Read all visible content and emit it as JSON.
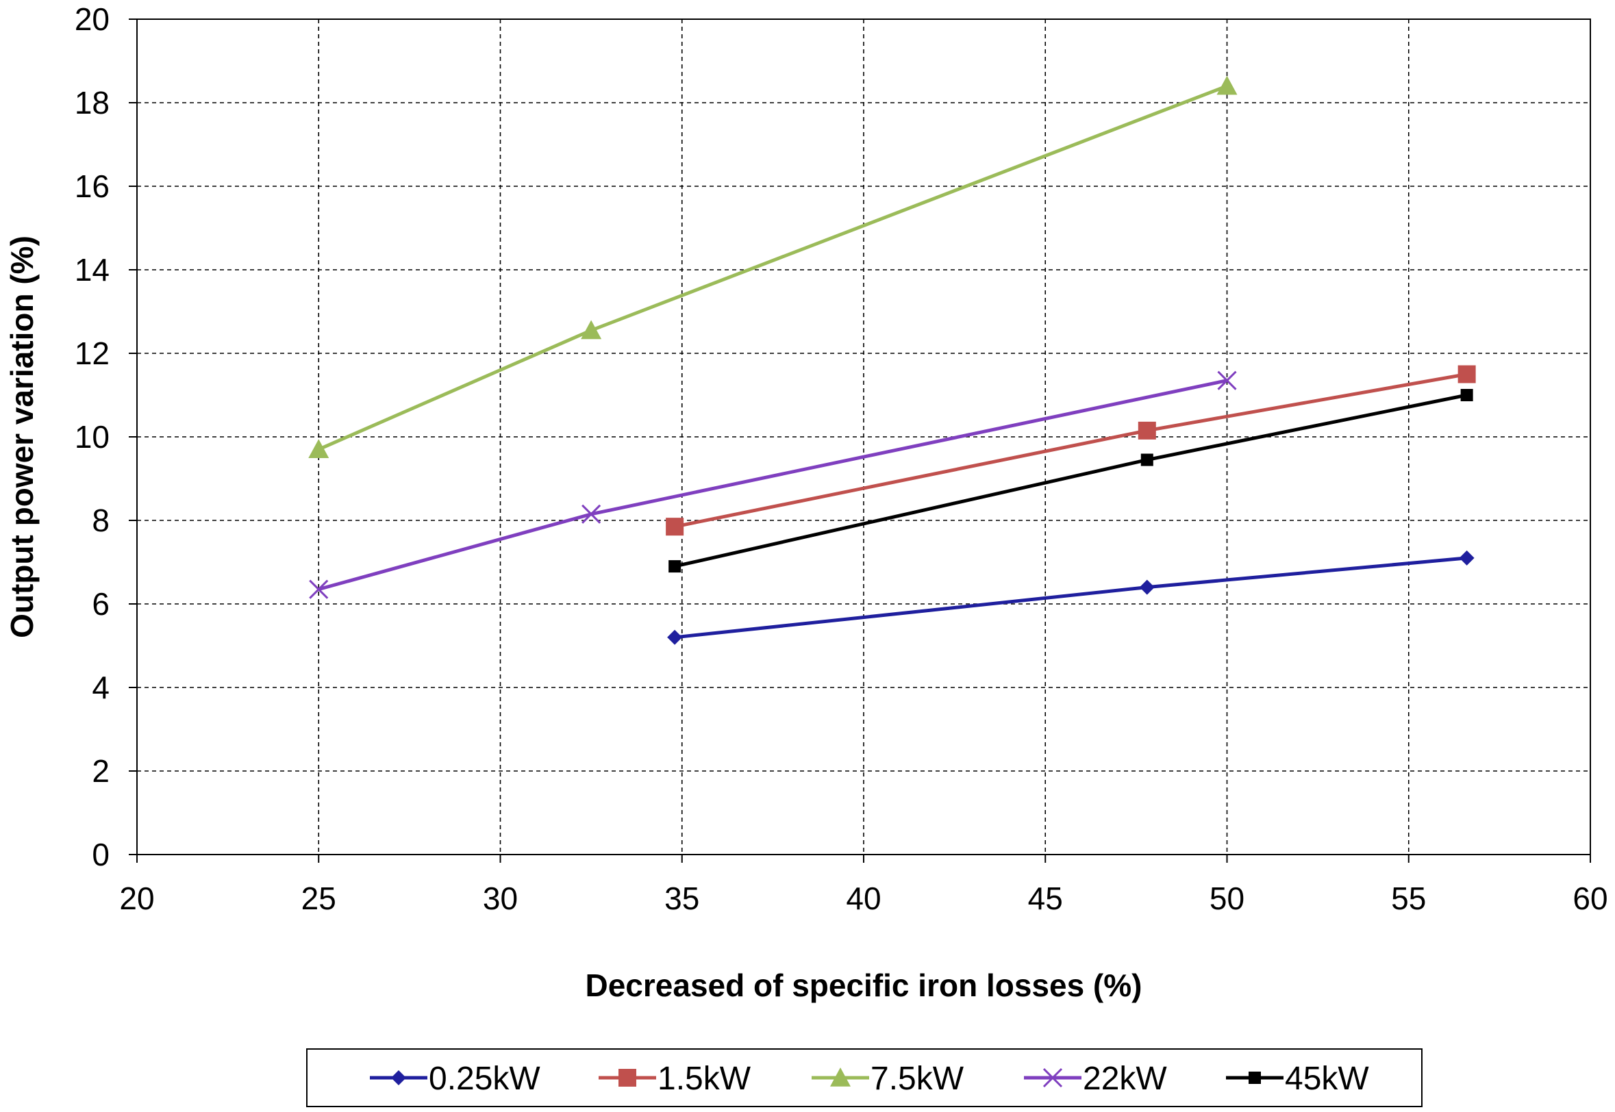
{
  "chart_data": {
    "type": "line",
    "title": "",
    "xlabel": "Decreased of specific iron losses (%)",
    "ylabel": "Output power variation (%)",
    "xlim": [
      20,
      60
    ],
    "ylim": [
      0,
      20
    ],
    "xticks": [
      20,
      25,
      30,
      35,
      40,
      45,
      50,
      55,
      60
    ],
    "yticks": [
      0,
      2,
      4,
      6,
      8,
      10,
      12,
      14,
      16,
      18,
      20
    ],
    "grid": true,
    "legend_position": "bottom",
    "series": [
      {
        "name": "0.25kW",
        "color": "#1f1f9e",
        "marker": "diamond",
        "x": [
          34.8,
          47.8,
          56.6
        ],
        "y": [
          5.2,
          6.4,
          7.1
        ]
      },
      {
        "name": "1.5kW",
        "color": "#c0504d",
        "marker": "square",
        "x": [
          34.8,
          47.8,
          56.6
        ],
        "y": [
          7.85,
          10.15,
          11.5
        ]
      },
      {
        "name": "7.5kW",
        "color": "#9bbb59",
        "marker": "triangle",
        "x": [
          25,
          32.5,
          50
        ],
        "y": [
          9.7,
          12.55,
          18.4
        ]
      },
      {
        "name": "22kW",
        "color": "#7f3fbf",
        "marker": "x",
        "x": [
          25,
          32.5,
          50
        ],
        "y": [
          6.35,
          8.15,
          11.35
        ]
      },
      {
        "name": "45kW",
        "color": "#000000",
        "marker": "square-small",
        "x": [
          34.8,
          47.8,
          56.6
        ],
        "y": [
          6.9,
          9.45,
          11.0
        ]
      }
    ]
  }
}
